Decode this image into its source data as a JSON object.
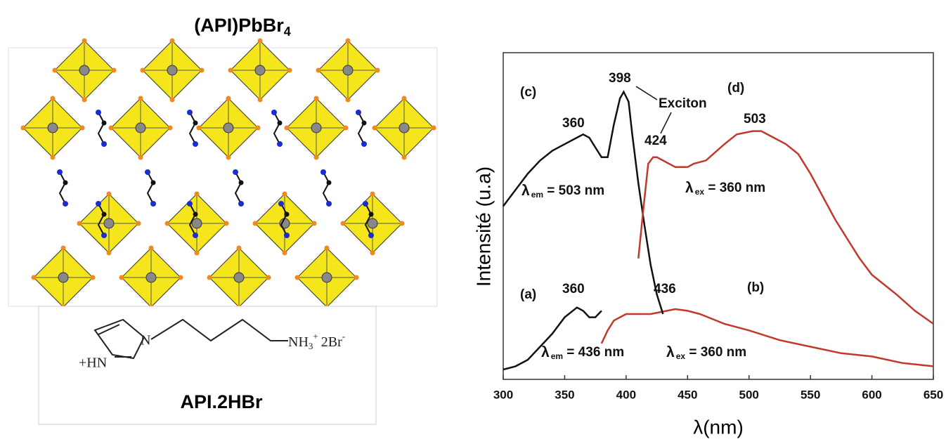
{
  "left": {
    "title": {
      "text": "(API)PbBr",
      "sub": "4"
    },
    "formula": {
      "left": "+HN",
      "left_n": "N",
      "right": "NH",
      "right_sub": "3",
      "right_sup": "+",
      "salt": "2Br",
      "salt_sup": "-"
    },
    "caption": "API.2HBr"
  },
  "chart_data": {
    "type": "line",
    "xlabel": "λ(nm)",
    "ylabel": "Intensité (u.a)",
    "xlim": [
      300,
      650
    ],
    "ylim": [
      0,
      100
    ],
    "xticks": [
      300,
      350,
      400,
      450,
      500,
      550,
      600,
      650
    ],
    "series": [
      {
        "color": "#111111",
        "x": [
          300,
          310,
          320,
          330,
          340,
          350,
          360,
          365,
          370,
          375,
          380
        ],
        "values": [
          3,
          4,
          6,
          10,
          14,
          19,
          22,
          21,
          19,
          19,
          21
        ]
      },
      {
        "color": "#c0392b",
        "x": [
          380,
          385,
          390,
          395,
          400,
          420,
          440,
          450,
          460,
          480,
          500,
          525,
          550,
          575,
          600,
          625,
          650
        ],
        "values": [
          11,
          15,
          18,
          19,
          20,
          20,
          21.5,
          21,
          20,
          17,
          15,
          12,
          10,
          8,
          7,
          5,
          4
        ]
      },
      {
        "color": "#111111",
        "x": [
          300,
          310,
          320,
          330,
          340,
          350,
          360,
          365,
          370,
          375,
          380,
          385,
          390,
          395,
          398,
          402,
          405,
          410,
          415,
          420,
          425,
          430
        ],
        "values": [
          53,
          58,
          63,
          67,
          70,
          72,
          74,
          75,
          74,
          71,
          68,
          68,
          78,
          86,
          88,
          85,
          75,
          60,
          47,
          35,
          26,
          20
        ]
      },
      {
        "color": "#c0392b",
        "x": [
          410,
          414,
          418,
          422,
          425,
          430,
          440,
          450,
          455,
          465,
          480,
          490,
          503,
          510,
          520,
          530,
          540,
          550,
          560,
          570,
          580,
          590,
          600,
          610,
          620,
          635,
          650
        ],
        "values": [
          37,
          52,
          66,
          68,
          68,
          67,
          65,
          65,
          66,
          67,
          72,
          75,
          76,
          76,
          74,
          72,
          69,
          63,
          56,
          49,
          43,
          37,
          32,
          29,
          26,
          21,
          17
        ]
      }
    ],
    "annotations": [
      "(c)",
      "398",
      "Exciton",
      "(d)",
      "360",
      "424",
      "503",
      {
        "text": "λ",
        "sub": "em",
        "rest": " = 503 nm"
      },
      {
        "text": "λ",
        "sub": "ex",
        "rest": " = 360 nm"
      },
      "(a)",
      "360",
      "436",
      "(b)",
      {
        "text": "λ",
        "sub": "em",
        "rest": " = 436 nm"
      },
      {
        "text": "λ",
        "sub": "ex",
        "rest": " = 360 nm"
      }
    ]
  }
}
